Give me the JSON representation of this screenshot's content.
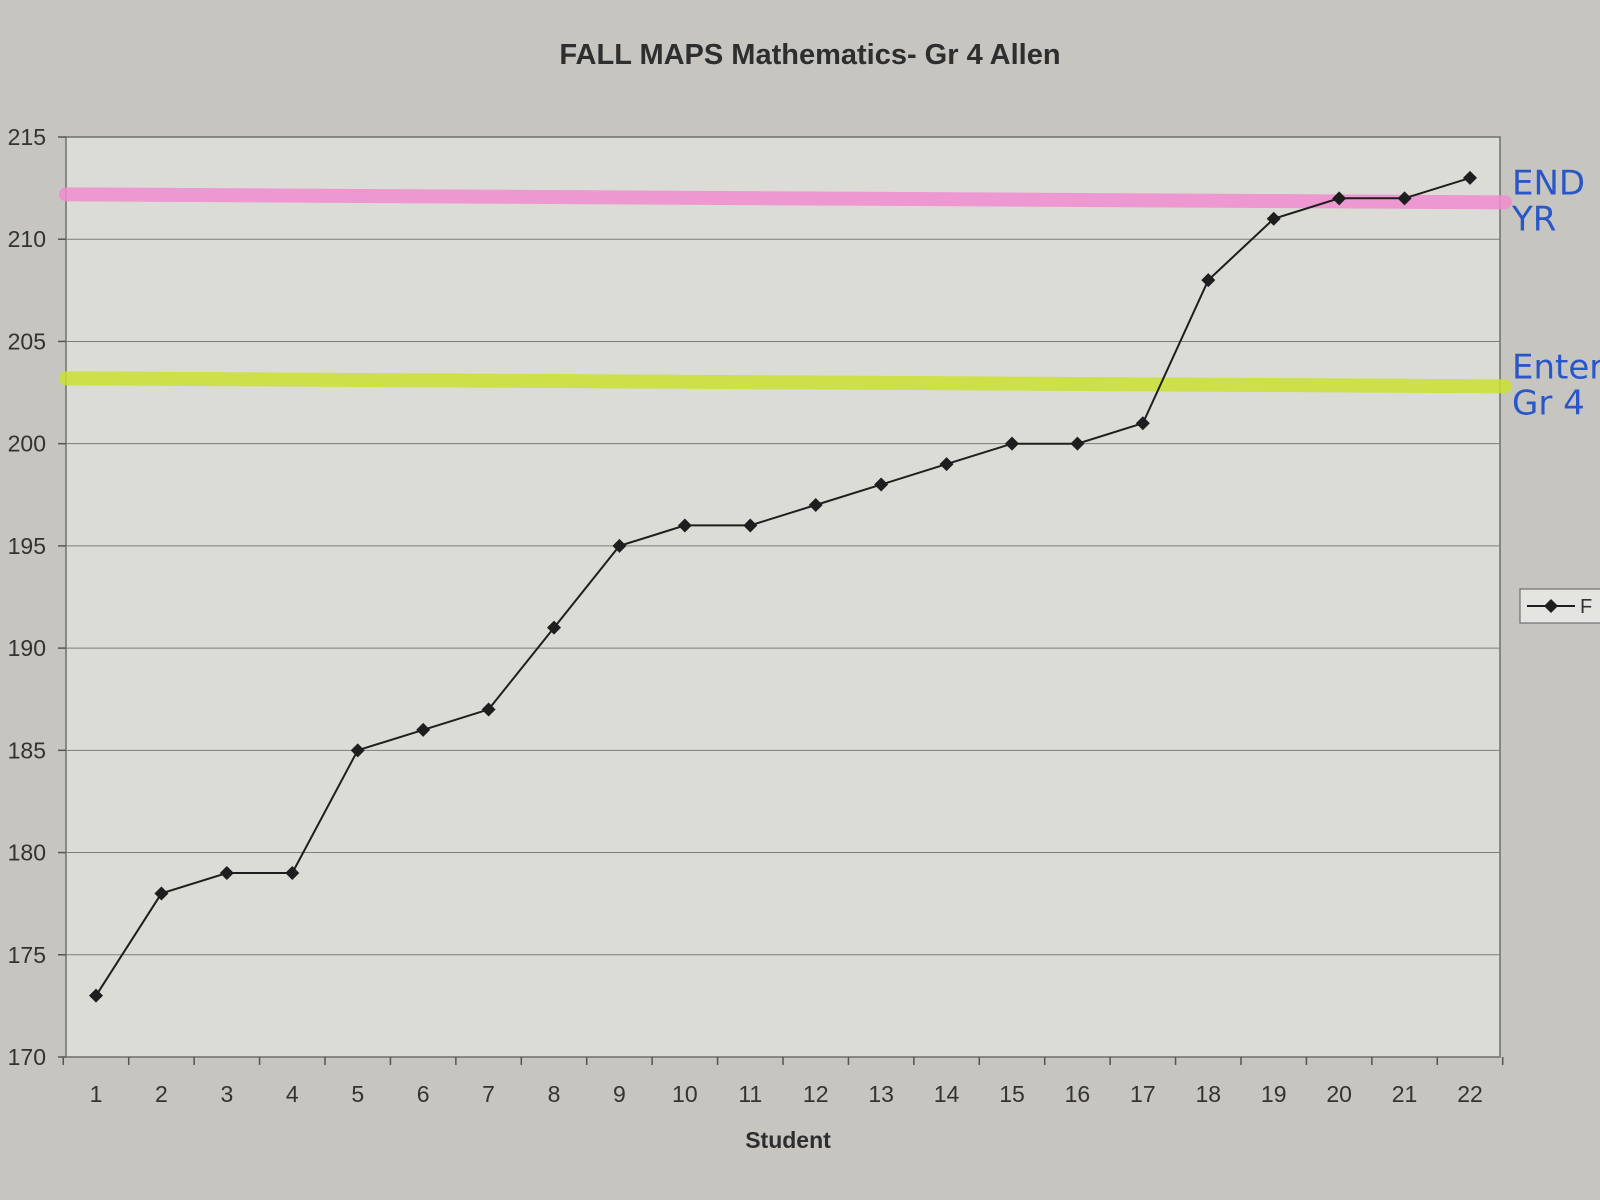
{
  "chart_data": {
    "type": "line",
    "title": "FALL MAPS Mathematics- Gr 4 Allen",
    "xlabel": "Student",
    "ylabel": "",
    "categories": [
      "1",
      "2",
      "3",
      "4",
      "5",
      "6",
      "7",
      "8",
      "9",
      "10",
      "11",
      "12",
      "13",
      "14",
      "15",
      "16",
      "17",
      "18",
      "19",
      "20",
      "21",
      "22"
    ],
    "series": [
      {
        "name": "F",
        "color": "#1e1e1e",
        "marker": "diamond",
        "values": [
          173,
          178,
          179,
          179,
          185,
          186,
          187,
          191,
          195,
          196,
          196,
          197,
          198,
          199,
          200,
          200,
          201,
          208,
          211,
          212,
          212,
          213
        ]
      }
    ],
    "ylim": [
      170,
      215
    ],
    "yticks": [
      "170",
      "175",
      "180",
      "185",
      "190",
      "195",
      "200",
      "205",
      "210",
      "215"
    ],
    "grid": true,
    "legend": "right",
    "reference_lines": [
      {
        "label_lines": [
          "END",
          "YR"
        ],
        "value": 212,
        "color": "#f08ccf"
      },
      {
        "label_lines": [
          "Enter",
          "Gr 4"
        ],
        "value": 203,
        "color": "#c8e030"
      }
    ]
  }
}
